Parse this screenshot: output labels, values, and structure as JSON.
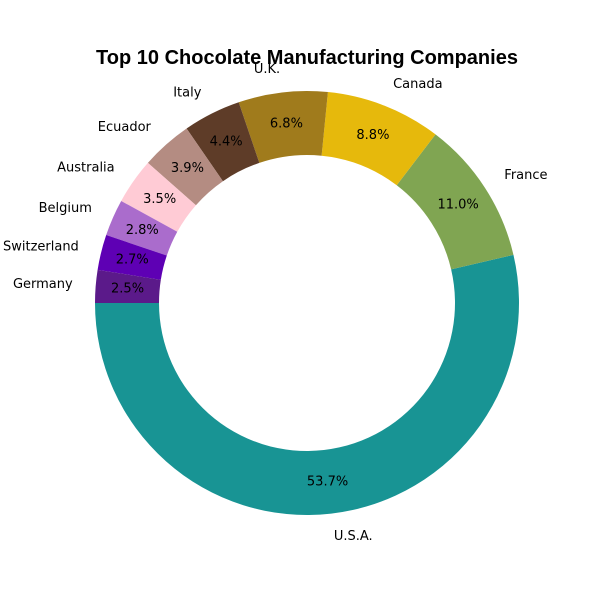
{
  "chart_data": {
    "type": "pie",
    "style": "donut",
    "title": "Top 10 Chocolate Manufacturing Companies",
    "slices": [
      {
        "label": "U.S.A.",
        "value": 53.7,
        "pct_text": "53.7%",
        "color": "#189494"
      },
      {
        "label": "France",
        "value": 11.0,
        "pct_text": "11.0%",
        "color": "#80a552"
      },
      {
        "label": "Canada",
        "value": 8.8,
        "pct_text": "8.8%",
        "color": "#e6b90c"
      },
      {
        "label": "U.K.",
        "value": 6.8,
        "pct_text": "6.8%",
        "color": "#a07b1c"
      },
      {
        "label": "Italy",
        "value": 4.4,
        "pct_text": "4.4%",
        "color": "#5e3c28"
      },
      {
        "label": "Ecuador",
        "value": 3.9,
        "pct_text": "3.9%",
        "color": "#b48c82"
      },
      {
        "label": "Australia",
        "value": 3.5,
        "pct_text": "3.5%",
        "color": "#ffcbd5"
      },
      {
        "label": "Belgium",
        "value": 2.8,
        "pct_text": "2.8%",
        "color": "#aa6ccc"
      },
      {
        "label": "Switzerland",
        "value": 2.7,
        "pct_text": "2.7%",
        "color": "#5e00b4"
      },
      {
        "label": "Germany",
        "value": 2.5,
        "pct_text": "2.5%",
        "color": "#5b1a8a"
      }
    ],
    "start_angle_deg": 180,
    "direction": "counterclockwise",
    "legend": "none"
  }
}
